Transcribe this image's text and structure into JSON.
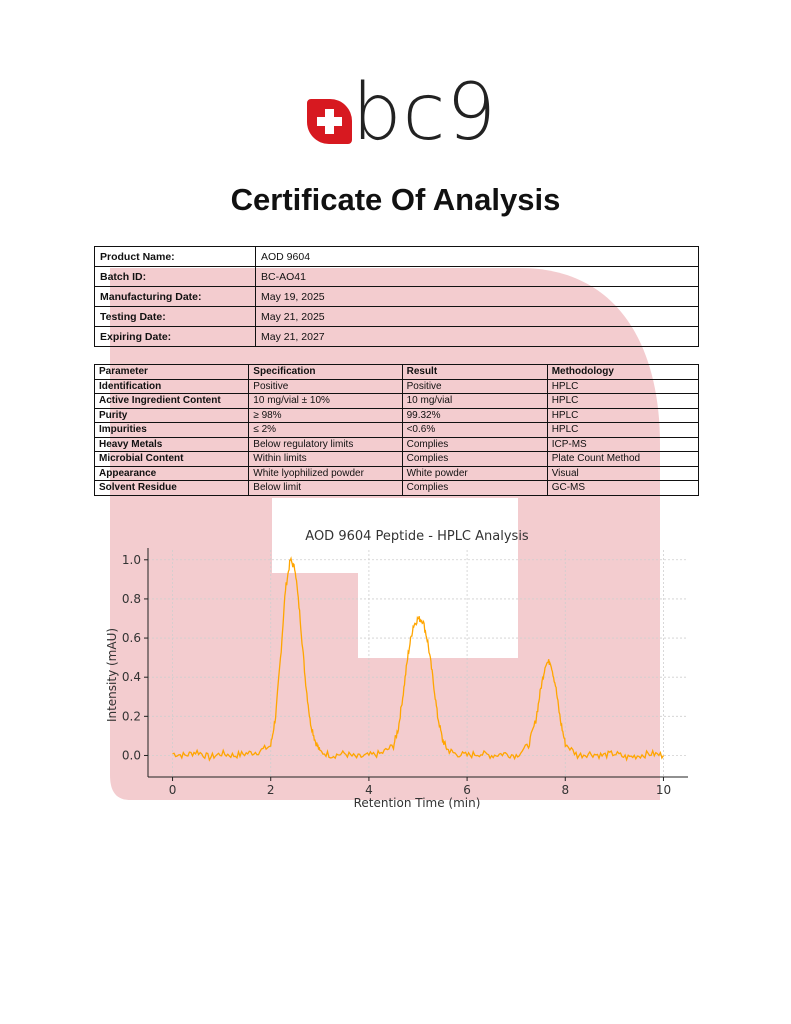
{
  "brand": {
    "name": "bc9",
    "accent": "#d71920"
  },
  "document": {
    "title": "Certificate Of Analysis"
  },
  "product_info": [
    {
      "label": "Product Name:",
      "value": "AOD 9604"
    },
    {
      "label": "Batch ID:",
      "value": "BC-AO41"
    },
    {
      "label": "Manufacturing Date:",
      "value": "May 19, 2025"
    },
    {
      "label": "Testing Date:",
      "value": "May 21, 2025"
    },
    {
      "label": "Expiring Date:",
      "value": "May 21, 2027"
    }
  ],
  "spec_table": {
    "headers": [
      "Parameter",
      "Specification",
      "Result",
      "Methodology"
    ],
    "rows": [
      [
        "Identification",
        "Positive",
        "Positive",
        "HPLC"
      ],
      [
        "Active Ingredient Content",
        "10 mg/vial ± 10%",
        "10 mg/vial",
        "HPLC"
      ],
      [
        "Purity",
        "≥ 98%",
        "99.32%",
        "HPLC"
      ],
      [
        "Impurities",
        "≤ 2%",
        "<0.6%",
        "HPLC"
      ],
      [
        "Heavy Metals",
        "Below regulatory limits",
        "Complies",
        "ICP-MS"
      ],
      [
        "Microbial Content",
        "Within limits",
        "Complies",
        "Plate Count Method"
      ],
      [
        "Appearance",
        "White lyophilized powder",
        "White powder",
        "Visual"
      ],
      [
        "Solvent Residue",
        "Below limit",
        "Complies",
        "GC-MS"
      ]
    ]
  },
  "chart_data": {
    "type": "line",
    "title": "AOD 9604 Peptide - HPLC Analysis",
    "xlabel": "Retention Time (min)",
    "ylabel": "Intensity (mAU)",
    "xlim": [
      -0.5,
      10.5
    ],
    "ylim": [
      -0.11,
      1.05
    ],
    "xticks": [
      0,
      2,
      4,
      6,
      8,
      10
    ],
    "yticks": [
      0.0,
      0.2,
      0.4,
      0.6,
      0.8,
      1.0
    ],
    "grid": true,
    "line_color": "#ffa500",
    "series": [
      {
        "x": [
          0,
          0.25,
          0.5,
          0.75,
          1.0,
          1.25,
          1.5,
          1.75,
          2.0,
          2.1,
          2.2,
          2.3,
          2.4,
          2.5,
          2.6,
          2.7,
          2.8,
          2.9,
          3.0,
          3.25,
          3.5,
          3.75,
          4.0,
          4.25,
          4.5,
          4.6,
          4.7,
          4.8,
          4.9,
          5.0,
          5.1,
          5.2,
          5.3,
          5.4,
          5.5,
          5.6,
          5.75,
          6.0,
          6.25,
          6.5,
          6.75,
          7.0,
          7.25,
          7.4,
          7.5,
          7.6,
          7.7,
          7.8,
          7.9,
          8.0,
          8.25,
          8.5,
          8.75,
          9.0,
          9.25,
          9.5,
          9.75,
          10.0
        ],
        "y": [
          0.01,
          0.0,
          0.02,
          -0.01,
          0.01,
          0.0,
          0.01,
          0.02,
          0.05,
          0.2,
          0.5,
          0.85,
          1.0,
          0.95,
          0.7,
          0.4,
          0.18,
          0.08,
          0.02,
          0.0,
          0.01,
          -0.01,
          0.0,
          0.01,
          0.05,
          0.14,
          0.32,
          0.52,
          0.66,
          0.7,
          0.69,
          0.58,
          0.4,
          0.2,
          0.08,
          0.03,
          0.01,
          0.0,
          0.01,
          0.0,
          0.01,
          0.0,
          0.05,
          0.18,
          0.34,
          0.47,
          0.48,
          0.36,
          0.18,
          0.06,
          0.0,
          0.01,
          0.0,
          0.01,
          -0.01,
          0.0,
          0.01,
          0.0
        ]
      }
    ]
  }
}
